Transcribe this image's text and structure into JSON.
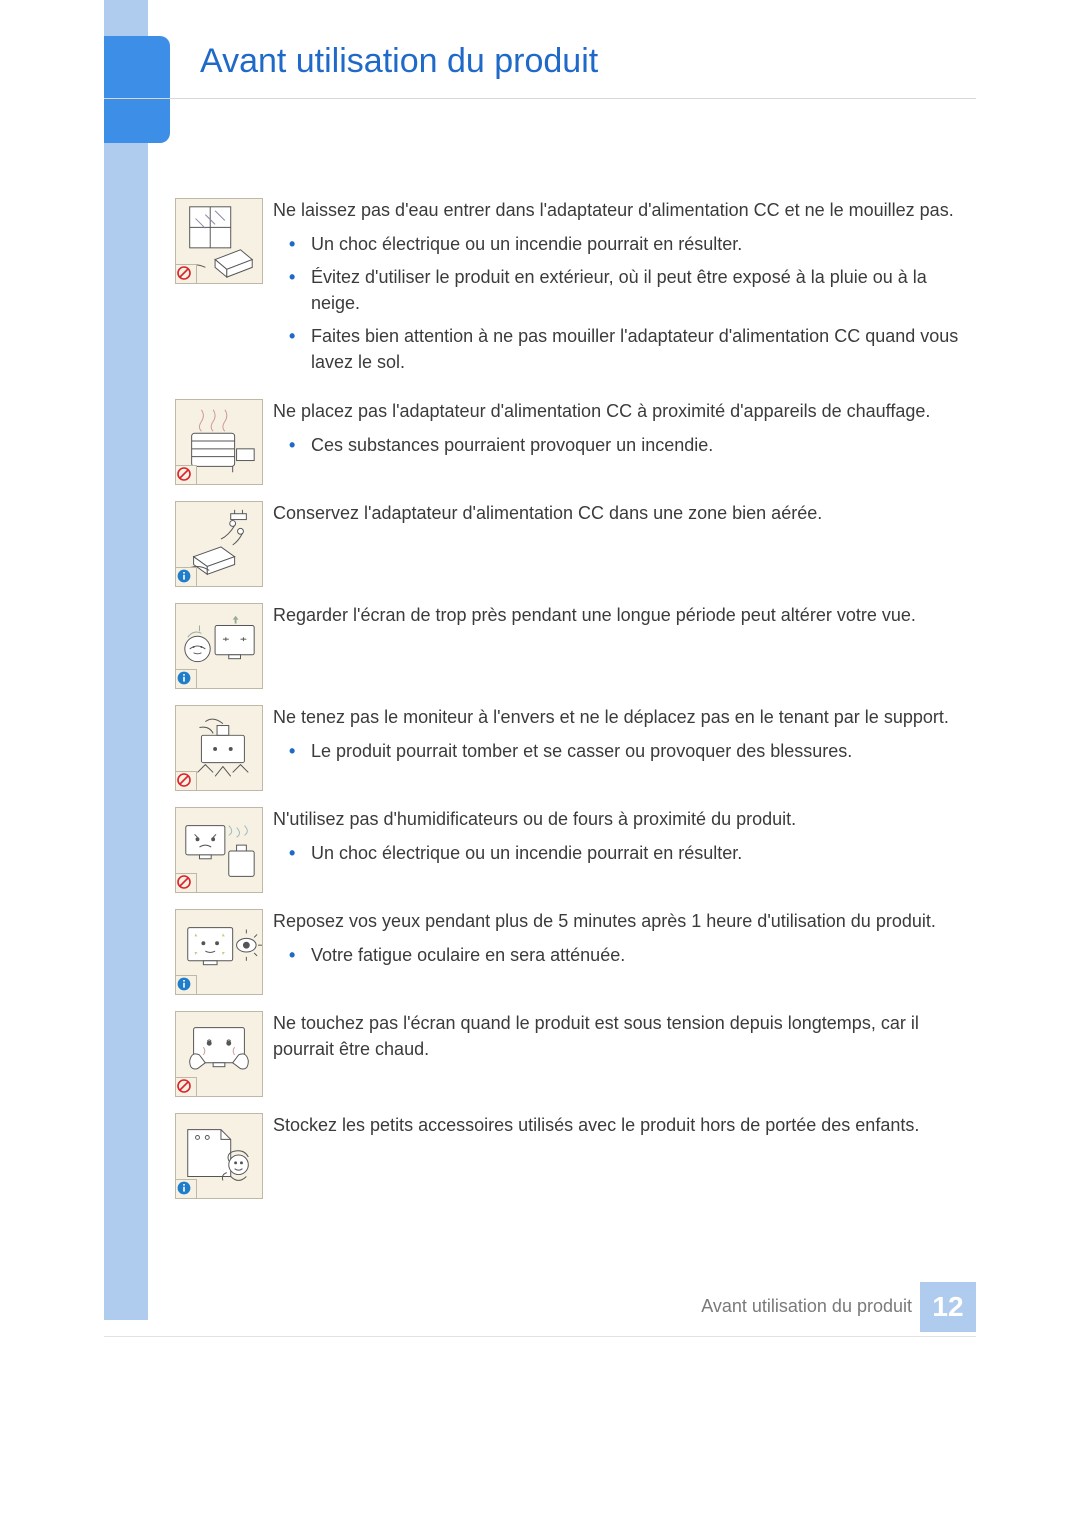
{
  "colors": {
    "sidebar": "#afcbee",
    "sidebar_tab": "#3c8ee6",
    "title": "#1f69c9",
    "bullet": "#1f69c9",
    "body_text": "#3b3b3b",
    "icon_bg": "#f7f1e4",
    "icon_border": "#bfb8a7",
    "prohibit": "#d9242a",
    "info": "#1f7dc9",
    "footer_text": "#7a7a7a",
    "rule": "#d9d9d9"
  },
  "typography": {
    "title_fontsize": 34,
    "body_fontsize": 18,
    "pageno_fontsize": 28
  },
  "badge_types": {
    "prohibit": "prohibit",
    "info": "info"
  },
  "header": {
    "title": "Avant utilisation du produit"
  },
  "footer": {
    "label": "Avant utilisation du produit",
    "page": "12"
  },
  "items": [
    {
      "icon": "water-adapter",
      "badge": "prohibit",
      "lead": "Ne laissez pas d'eau entrer dans l'adaptateur d'alimentation CC et ne le mouillez pas.",
      "bullets": [
        "Un choc électrique ou un incendie pourrait en résulter.",
        "Évitez d'utiliser le produit en extérieur, où il peut être exposé à la pluie ou à la neige.",
        "Faites bien attention à ne pas mouiller l'adaptateur d'alimentation CC quand vous lavez le sol."
      ]
    },
    {
      "icon": "heater",
      "badge": "prohibit",
      "lead": "Ne placez pas l'adaptateur d'alimentation CC à proximité d'appareils de chauffage.",
      "bullets": [
        "Ces substances pourraient provoquer un incendie."
      ]
    },
    {
      "icon": "ventilated",
      "badge": "info",
      "lead": "Conservez l'adaptateur d'alimentation CC dans une zone bien aérée.",
      "bullets": []
    },
    {
      "icon": "eyes-close",
      "badge": "info",
      "lead": "Regarder l'écran de trop près pendant une longue période peut altérer votre vue.",
      "bullets": []
    },
    {
      "icon": "upside-down",
      "badge": "prohibit",
      "lead": "Ne tenez pas le moniteur à l'envers et ne le déplacez pas en le tenant par le support.",
      "bullets": [
        "Le produit pourrait tomber et se casser ou provoquer des blessures."
      ]
    },
    {
      "icon": "humidifier",
      "badge": "prohibit",
      "lead": "N'utilisez pas d'humidificateurs ou de fours à proximité du produit.",
      "bullets": [
        "Un choc électrique ou un incendie pourrait en résulter."
      ]
    },
    {
      "icon": "rest-eyes",
      "badge": "info",
      "lead": "Reposez vos yeux pendant plus de 5 minutes après 1 heure d'utilisation du produit.",
      "bullets": [
        "Votre fatigue oculaire en sera atténuée."
      ]
    },
    {
      "icon": "hot-screen",
      "badge": "prohibit",
      "lead": "Ne touchez pas l'écran quand le produit est sous tension depuis longtemps, car il pourrait être chaud.",
      "bullets": []
    },
    {
      "icon": "child-accessories",
      "badge": "info",
      "lead": "Stockez les petits accessoires utilisés avec le produit hors de portée des enfants.",
      "bullets": []
    }
  ]
}
